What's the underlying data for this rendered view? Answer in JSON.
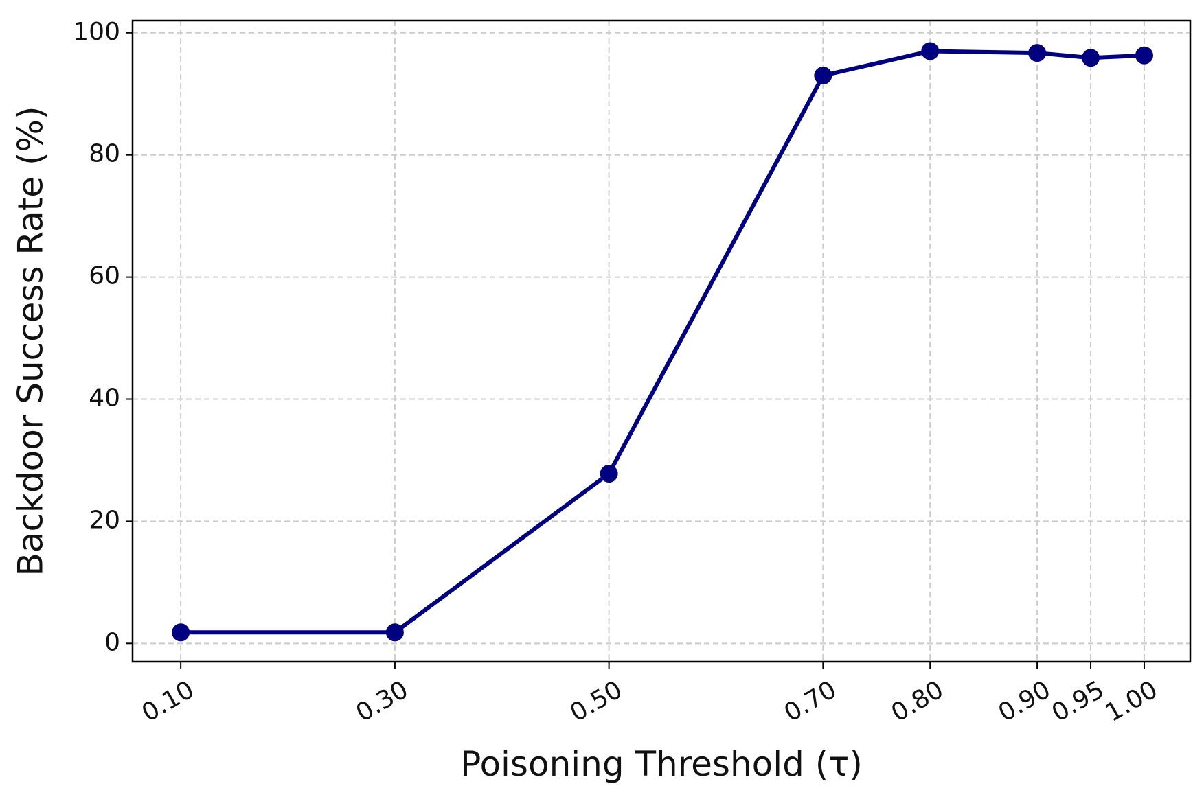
{
  "chart_data": {
    "type": "line",
    "x_label": "Poisoning Threshold (τ)",
    "y_label": "Backdoor Success Rate (%)",
    "x": [
      0.1,
      0.3,
      0.5,
      0.7,
      0.8,
      0.9,
      0.95,
      1.0
    ],
    "series": [
      {
        "name": "Backdoor Success Rate",
        "color": "#000080",
        "values": [
          1.8,
          1.8,
          27.8,
          93.0,
          97.0,
          96.7,
          95.9,
          96.3
        ]
      }
    ],
    "xlim": [
      0.055,
      1.043
    ],
    "ylim": [
      -3,
      102
    ],
    "xticks": [
      {
        "value": 0.1,
        "label": "0.10"
      },
      {
        "value": 0.3,
        "label": "0.30"
      },
      {
        "value": 0.5,
        "label": "0.50"
      },
      {
        "value": 0.7,
        "label": "0.70"
      },
      {
        "value": 0.8,
        "label": "0.80"
      },
      {
        "value": 0.9,
        "label": "0.90"
      },
      {
        "value": 0.95,
        "label": "0.95"
      },
      {
        "value": 1.0,
        "label": "1.00"
      }
    ],
    "yticks": [
      0,
      20,
      40,
      60,
      80,
      100
    ],
    "grid": true
  }
}
